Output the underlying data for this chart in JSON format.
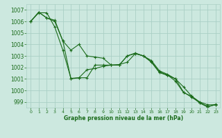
{
  "bg_color": "#cce8df",
  "grid_color": "#aacfc5",
  "line_color": "#1a6b1a",
  "xlabel": "Graphe pression niveau de la mer (hPa)",
  "xmin": -0.5,
  "xmax": 23.5,
  "ymin": 998.5,
  "ymax": 1007.5,
  "yticks": [
    999,
    1000,
    1001,
    1002,
    1003,
    1004,
    1005,
    1006,
    1007
  ],
  "xticks": [
    0,
    1,
    2,
    3,
    4,
    5,
    6,
    7,
    8,
    9,
    10,
    11,
    12,
    13,
    14,
    15,
    16,
    17,
    18,
    19,
    20,
    21,
    22,
    23
  ],
  "series": [
    [
      1006.0,
      1006.8,
      1006.3,
      1006.1,
      1004.3,
      1003.5,
      1004.0,
      1003.0,
      1002.9,
      1002.8,
      1002.2,
      1002.2,
      1003.0,
      1003.25,
      1003.0,
      1002.6,
      1001.7,
      1001.4,
      1001.0,
      1000.3,
      999.5,
      999.0,
      998.75,
      998.75
    ],
    [
      1006.0,
      1006.75,
      1006.75,
      1005.5,
      1003.5,
      1001.05,
      1001.1,
      1001.8,
      1001.9,
      1002.1,
      1002.2,
      1002.25,
      1002.45,
      1003.2,
      1003.0,
      1002.45,
      1001.55,
      1001.3,
      1001.0,
      999.85,
      999.4,
      998.95,
      998.6,
      998.75
    ],
    [
      1006.0,
      1006.8,
      1006.3,
      1006.0,
      1004.3,
      1001.0,
      1001.1,
      1001.1,
      1002.2,
      1002.2,
      1002.2,
      1002.2,
      1003.0,
      1003.2,
      1003.0,
      1002.5,
      1001.6,
      1001.35,
      1000.8,
      999.8,
      999.5,
      998.9,
      998.55,
      998.8
    ]
  ]
}
